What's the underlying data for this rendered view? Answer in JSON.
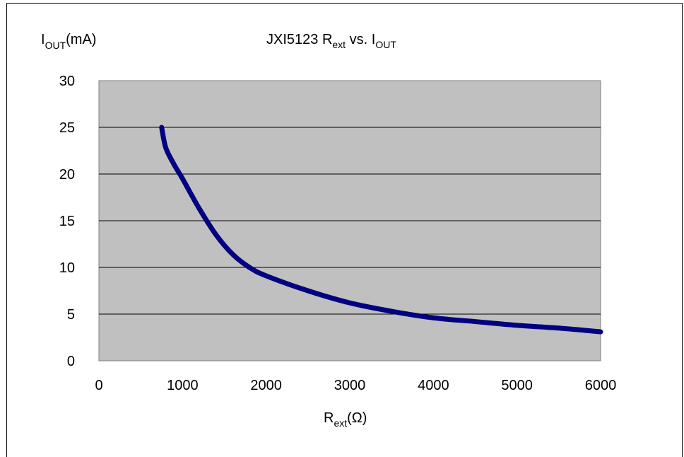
{
  "chart_data": {
    "type": "line",
    "title": {
      "main": "JXI5123 R",
      "sub1": "ext",
      "mid": " vs. I",
      "sub2": "OUT"
    },
    "ylabel": {
      "main": "I",
      "sub": "OUT",
      "unit": "(mA)"
    },
    "xlabel": {
      "main": "R",
      "sub": "ext",
      "unit": "(Ω)"
    },
    "xlim": [
      0,
      6000
    ],
    "ylim": [
      0,
      30
    ],
    "x_ticks": [
      "0",
      "1000",
      "2000",
      "3000",
      "4000",
      "5000",
      "6000"
    ],
    "y_ticks": [
      "0",
      "5",
      "10",
      "15",
      "20",
      "25",
      "30"
    ],
    "grid": "horizontal",
    "plot_background": "#c0c0c0",
    "series": [
      {
        "color": "#000080",
        "x": [
          750,
          800,
          900,
          1000,
          1200,
          1400,
          1600,
          1800,
          2000,
          2500,
          3000,
          3500,
          4000,
          4500,
          5000,
          5500,
          6000
        ],
        "y": [
          25,
          22.8,
          21,
          19.5,
          16.3,
          13.5,
          11.4,
          10,
          9.1,
          7.5,
          6.2,
          5.3,
          4.6,
          4.2,
          3.8,
          3.5,
          3.1
        ]
      }
    ]
  }
}
